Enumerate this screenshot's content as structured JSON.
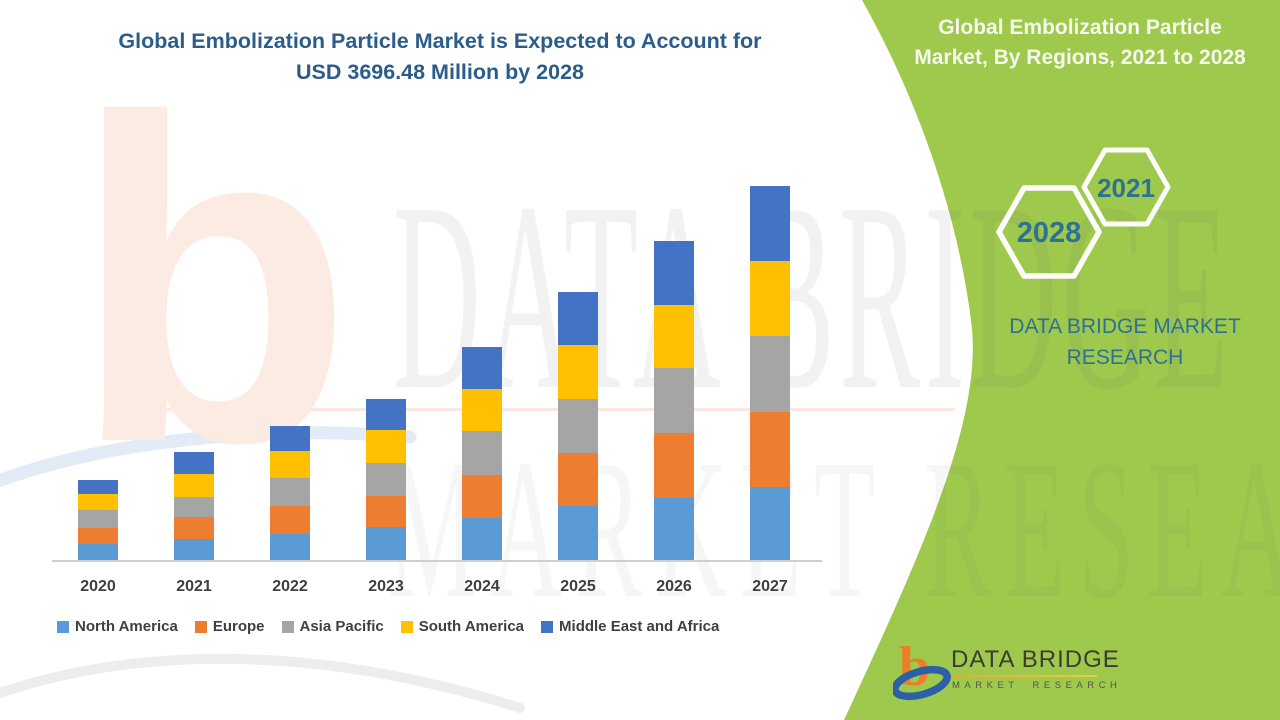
{
  "colors": {
    "panel_green": "#9EC94C",
    "title_blue": "#2B5C8A",
    "teal_text": "#2E7192",
    "axis_text": "#3F3F3F",
    "hex_outline": "#FDFEFA",
    "logo_orange": "#F07C28",
    "logo_blue": "#2B5FA8",
    "watermark_peach_line": "rgba(231,110,80,0.16)"
  },
  "header": {
    "title_line1": "Global Embolization Particle Market is Expected to Account for",
    "title_line2": "USD 3696.48 Million by 2028"
  },
  "side_panel": {
    "title_line1": "Global Embolization Particle",
    "title_line2": "Market, By Regions, 2021 to 2028",
    "hexagon_labels": [
      "2028",
      "2021"
    ],
    "brand_line1": "DATA BRIDGE MARKET",
    "brand_line2": "RESEARCH"
  },
  "watermark": {
    "row1": "DATA BRIDGE",
    "row2": "MARKET RESEARCH",
    "corner_letter": "b"
  },
  "footer_logo": {
    "brand": "DATA BRIDGE",
    "sub": "MARKET RESEARCH"
  },
  "chart_data": {
    "type": "bar",
    "stacked": true,
    "title": "Global Embolization Particle Market is Expected to Account for USD 3696.48 Million by 2028",
    "categories": [
      "2020",
      "2021",
      "2022",
      "2023",
      "2024",
      "2025",
      "2026",
      "2027"
    ],
    "series": [
      {
        "name": "North America",
        "color": "#5B9BD5",
        "values": [
          16,
          21,
          26,
          33,
          42,
          54,
          62,
          73
        ]
      },
      {
        "name": "Europe",
        "color": "#ED7D31",
        "values": [
          16,
          22,
          28,
          31,
          43,
          53,
          65,
          75
        ]
      },
      {
        "name": "Asia Pacific",
        "color": "#A5A5A5",
        "values": [
          18,
          20,
          28,
          33,
          44,
          54,
          65,
          76
        ]
      },
      {
        "name": "South America",
        "color": "#FFC000",
        "values": [
          16,
          23,
          27,
          33,
          42,
          54,
          63,
          75
        ]
      },
      {
        "name": "Middle East and Africa",
        "color": "#4472C4",
        "values": [
          14,
          22,
          25,
          31,
          42,
          53,
          64,
          75
        ]
      }
    ],
    "totals_relative": [
      80,
      108,
      134,
      161,
      213,
      268,
      319,
      374
    ],
    "value_axis": "none shown — series values are relative bar-segment heights estimated in pixels",
    "xlabel": "",
    "ylabel": "",
    "grid": false,
    "legend_position": "bottom"
  }
}
